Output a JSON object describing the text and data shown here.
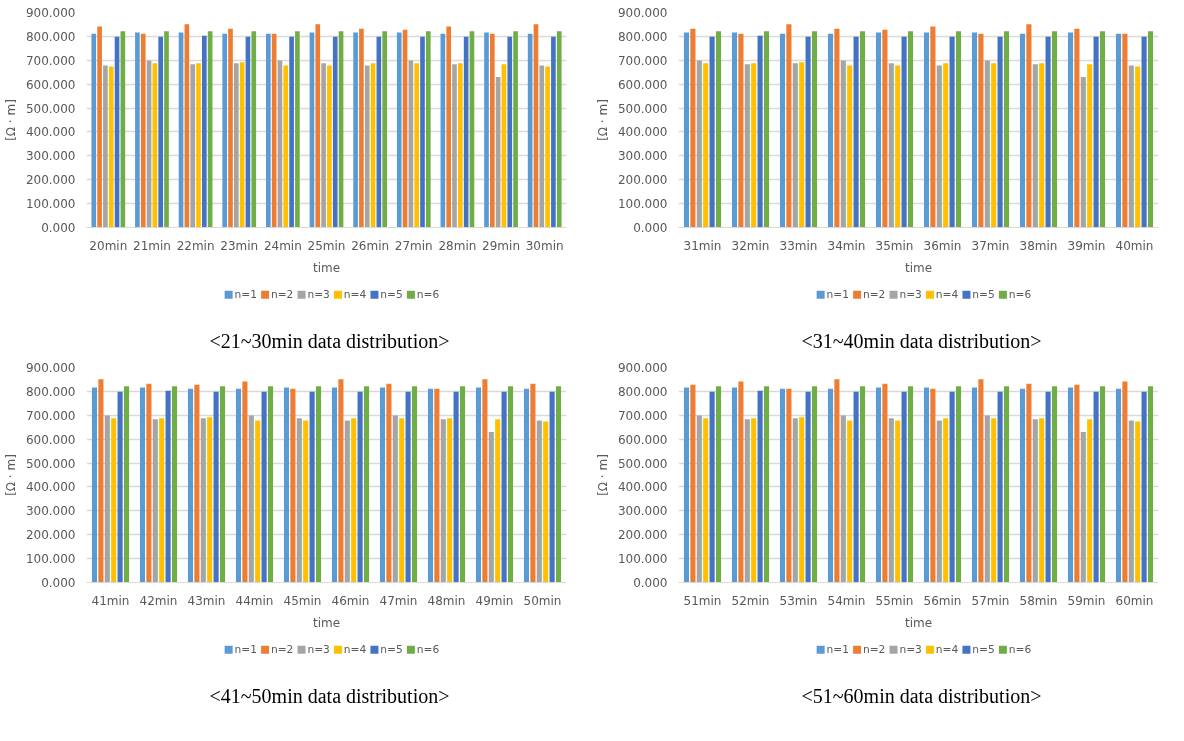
{
  "chart_data": [
    {
      "type": "bar",
      "title": "<21~30min data distribution>",
      "xlabel": "time",
      "ylabel": "[Ω · m]",
      "categories": [
        "20min",
        "21min",
        "22min",
        "23min",
        "24min",
        "25min",
        "26min",
        "27min",
        "28min",
        "29min",
        "30min"
      ],
      "ylim": [
        0,
        900
      ],
      "yticks": [
        {
          "value": 0,
          "label": "0.000"
        },
        {
          "value": 100,
          "label": "100.000"
        },
        {
          "value": 200,
          "label": "200.000"
        },
        {
          "value": 300,
          "label": "300.000"
        },
        {
          "value": 400,
          "label": "400.000"
        },
        {
          "value": 500,
          "label": "500.000"
        },
        {
          "value": 600,
          "label": "600.000"
        },
        {
          "value": 700,
          "label": "700.000"
        },
        {
          "value": 800,
          "label": "800.000"
        },
        {
          "value": 900,
          "label": "900.000"
        }
      ],
      "grid": "y",
      "legend": "bottom",
      "series": [
        {
          "name": "n=1",
          "color": "#5b9bd5",
          "values": [
            811,
            816,
            816,
            811,
            811,
            816,
            816,
            816,
            811,
            816,
            811
          ]
        },
        {
          "name": "n=2",
          "color": "#ed7d31",
          "values": [
            841,
            811,
            851,
            832,
            811,
            851,
            832,
            828,
            841,
            811,
            851
          ]
        },
        {
          "name": "n=3",
          "color": "#a5a5a5",
          "values": [
            678,
            699,
            683,
            688,
            699,
            688,
            678,
            699,
            683,
            630,
            678
          ]
        },
        {
          "name": "n=4",
          "color": "#ffc000",
          "values": [
            674,
            688,
            688,
            692,
            678,
            678,
            688,
            688,
            688,
            683,
            674
          ]
        },
        {
          "name": "n=5",
          "color": "#4472c4",
          "values": [
            799,
            799,
            803,
            799,
            799,
            799,
            799,
            799,
            799,
            799,
            799
          ]
        },
        {
          "name": "n=6",
          "color": "#70ad47",
          "values": [
            822,
            822,
            822,
            822,
            822,
            822,
            822,
            822,
            822,
            822,
            822
          ]
        }
      ]
    },
    {
      "type": "bar",
      "title": "<31~40min data distribution>",
      "xlabel": "time",
      "ylabel": "[Ω · m]",
      "categories": [
        "31min",
        "32min",
        "33min",
        "34min",
        "35min",
        "36min",
        "37min",
        "38min",
        "39min",
        "40min"
      ],
      "ylim": [
        0,
        900
      ],
      "yticks": [
        {
          "value": 0,
          "label": "0.000"
        },
        {
          "value": 100,
          "label": "100.000"
        },
        {
          "value": 200,
          "label": "200.000"
        },
        {
          "value": 300,
          "label": "300.000"
        },
        {
          "value": 400,
          "label": "400.000"
        },
        {
          "value": 500,
          "label": "500.000"
        },
        {
          "value": 600,
          "label": "600.000"
        },
        {
          "value": 700,
          "label": "700.000"
        },
        {
          "value": 800,
          "label": "800.000"
        },
        {
          "value": 900,
          "label": "900.000"
        }
      ],
      "grid": "y",
      "legend": "bottom",
      "series": [
        {
          "name": "n=1",
          "color": "#5b9bd5",
          "values": [
            816,
            816,
            811,
            811,
            816,
            816,
            816,
            811,
            816,
            811
          ]
        },
        {
          "name": "n=2",
          "color": "#ed7d31",
          "values": [
            832,
            811,
            851,
            832,
            828,
            841,
            811,
            851,
            832,
            811
          ]
        },
        {
          "name": "n=3",
          "color": "#a5a5a5",
          "values": [
            699,
            683,
            688,
            699,
            688,
            678,
            699,
            683,
            630,
            678
          ]
        },
        {
          "name": "n=4",
          "color": "#ffc000",
          "values": [
            688,
            688,
            692,
            678,
            678,
            688,
            688,
            688,
            683,
            674
          ]
        },
        {
          "name": "n=5",
          "color": "#4472c4",
          "values": [
            799,
            803,
            799,
            799,
            799,
            799,
            799,
            799,
            799,
            799
          ]
        },
        {
          "name": "n=6",
          "color": "#70ad47",
          "values": [
            822,
            822,
            822,
            822,
            822,
            822,
            822,
            822,
            822,
            822
          ]
        }
      ]
    },
    {
      "type": "bar",
      "title": "<41~50min data distribution>",
      "xlabel": "time",
      "ylabel": "[Ω · m]",
      "categories": [
        "41min",
        "42min",
        "43min",
        "44min",
        "45min",
        "46min",
        "47min",
        "48min",
        "49min",
        "50min"
      ],
      "ylim": [
        0,
        900
      ],
      "yticks": [
        {
          "value": 0,
          "label": "0.000"
        },
        {
          "value": 100,
          "label": "100.000"
        },
        {
          "value": 200,
          "label": "200.000"
        },
        {
          "value": 300,
          "label": "300.000"
        },
        {
          "value": 400,
          "label": "400.000"
        },
        {
          "value": 500,
          "label": "500.000"
        },
        {
          "value": 600,
          "label": "600.000"
        },
        {
          "value": 700,
          "label": "700.000"
        },
        {
          "value": 800,
          "label": "800.000"
        },
        {
          "value": 900,
          "label": "900.000"
        }
      ],
      "grid": "y",
      "legend": "bottom",
      "series": [
        {
          "name": "n=1",
          "color": "#5b9bd5",
          "values": [
            816,
            816,
            811,
            811,
            816,
            816,
            816,
            811,
            816,
            811
          ]
        },
        {
          "name": "n=2",
          "color": "#ed7d31",
          "values": [
            851,
            832,
            828,
            841,
            811,
            851,
            832,
            811,
            851,
            832
          ]
        },
        {
          "name": "n=3",
          "color": "#a5a5a5",
          "values": [
            699,
            683,
            688,
            699,
            688,
            678,
            699,
            683,
            630,
            678
          ]
        },
        {
          "name": "n=4",
          "color": "#ffc000",
          "values": [
            688,
            688,
            692,
            678,
            678,
            688,
            688,
            688,
            683,
            674
          ]
        },
        {
          "name": "n=5",
          "color": "#4472c4",
          "values": [
            799,
            803,
            799,
            799,
            799,
            799,
            799,
            799,
            799,
            799
          ]
        },
        {
          "name": "n=6",
          "color": "#70ad47",
          "values": [
            822,
            822,
            822,
            822,
            822,
            822,
            822,
            822,
            822,
            822
          ]
        }
      ]
    },
    {
      "type": "bar",
      "title": "<51~60min data distribution>",
      "xlabel": "time",
      "ylabel": "[Ω · m]",
      "categories": [
        "51min",
        "52min",
        "53min",
        "54min",
        "55min",
        "56min",
        "57min",
        "58min",
        "59min",
        "60min"
      ],
      "ylim": [
        0,
        900
      ],
      "yticks": [
        {
          "value": 0,
          "label": "0.000"
        },
        {
          "value": 100,
          "label": "100.000"
        },
        {
          "value": 200,
          "label": "200.000"
        },
        {
          "value": 300,
          "label": "300.000"
        },
        {
          "value": 400,
          "label": "400.000"
        },
        {
          "value": 500,
          "label": "500.000"
        },
        {
          "value": 600,
          "label": "600.000"
        },
        {
          "value": 700,
          "label": "700.000"
        },
        {
          "value": 800,
          "label": "800.000"
        },
        {
          "value": 900,
          "label": "900.000"
        }
      ],
      "grid": "y",
      "legend": "bottom",
      "series": [
        {
          "name": "n=1",
          "color": "#5b9bd5",
          "values": [
            816,
            816,
            811,
            811,
            816,
            816,
            816,
            811,
            816,
            811
          ]
        },
        {
          "name": "n=2",
          "color": "#ed7d31",
          "values": [
            828,
            841,
            811,
            851,
            832,
            811,
            851,
            832,
            828,
            841
          ]
        },
        {
          "name": "n=3",
          "color": "#a5a5a5",
          "values": [
            699,
            683,
            688,
            699,
            688,
            678,
            699,
            683,
            630,
            678
          ]
        },
        {
          "name": "n=4",
          "color": "#ffc000",
          "values": [
            688,
            688,
            692,
            678,
            678,
            688,
            688,
            688,
            683,
            674
          ]
        },
        {
          "name": "n=5",
          "color": "#4472c4",
          "values": [
            799,
            803,
            799,
            799,
            799,
            799,
            799,
            799,
            799,
            799
          ]
        },
        {
          "name": "n=6",
          "color": "#70ad47",
          "values": [
            822,
            822,
            822,
            822,
            822,
            822,
            822,
            822,
            822,
            822
          ]
        }
      ]
    }
  ]
}
